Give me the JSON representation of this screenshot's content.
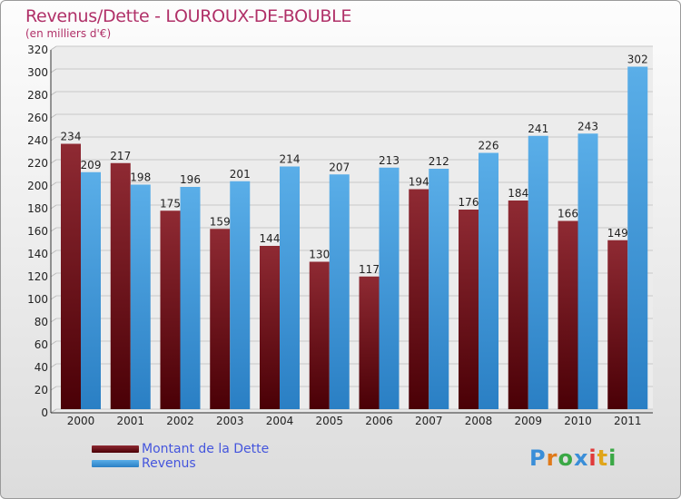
{
  "title": "Revenus/Dette - LOUROUX-DE-BOUBLE",
  "subtitle": "(en milliers d'€)",
  "chart_data": {
    "type": "bar",
    "categories": [
      "2000",
      "2001",
      "2002",
      "2003",
      "2004",
      "2005",
      "2006",
      "2007",
      "2008",
      "2009",
      "2010",
      "2011"
    ],
    "series": [
      {
        "name": "Montant de la Dette",
        "color": "#6b0a0f",
        "values": [
          234,
          217,
          175,
          159,
          144,
          130,
          117,
          194,
          176,
          184,
          166,
          149
        ]
      },
      {
        "name": "Revenus",
        "color": "#3b9be0",
        "values": [
          209,
          198,
          196,
          201,
          214,
          207,
          213,
          212,
          226,
          241,
          243,
          302
        ]
      }
    ],
    "ylim": [
      0,
      320
    ],
    "yticks": [
      0,
      20,
      40,
      60,
      80,
      100,
      120,
      140,
      160,
      180,
      200,
      220,
      240,
      260,
      280,
      300,
      320
    ],
    "grid": true,
    "legend_position": "bottom-left"
  },
  "logo": {
    "letters": [
      "P",
      "r",
      "o",
      "x",
      "i",
      "t",
      "i"
    ],
    "colors": [
      "#3a8ed8",
      "#e07a1a",
      "#3aa845",
      "#3a8ed8",
      "#e03a3a",
      "#e0a51a",
      "#3aa845"
    ]
  }
}
